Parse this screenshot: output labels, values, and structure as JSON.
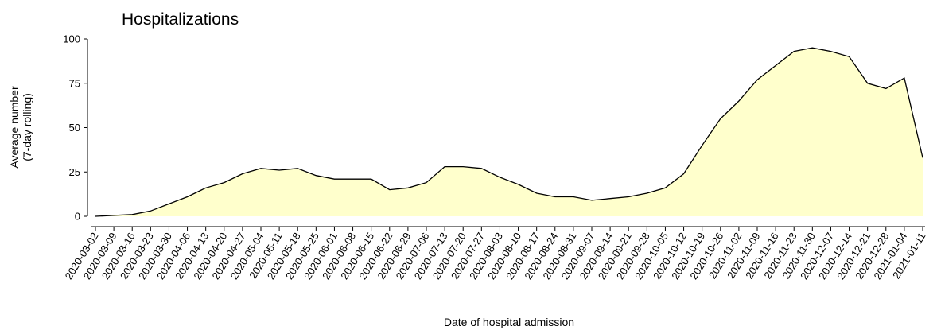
{
  "chart_data": {
    "type": "area",
    "title": "Hospitalizations",
    "xlabel": "Date of hospital admission",
    "ylabel": [
      "Average number",
      "(7-day rolling)"
    ],
    "categories": [
      "2020-03-02",
      "2020-03-09",
      "2020-03-16",
      "2020-03-23",
      "2020-03-30",
      "2020-04-06",
      "2020-04-13",
      "2020-04-20",
      "2020-04-27",
      "2020-05-04",
      "2020-05-11",
      "2020-05-18",
      "2020-05-25",
      "2020-06-01",
      "2020-06-08",
      "2020-06-15",
      "2020-06-22",
      "2020-06-29",
      "2020-07-06",
      "2020-07-13",
      "2020-07-20",
      "2020-07-27",
      "2020-08-03",
      "2020-08-10",
      "2020-08-17",
      "2020-08-24",
      "2020-08-31",
      "2020-09-07",
      "2020-09-14",
      "2020-09-21",
      "2020-09-28",
      "2020-10-05",
      "2020-10-12",
      "2020-10-19",
      "2020-10-26",
      "2020-11-02",
      "2020-11-09",
      "2020-11-16",
      "2020-11-23",
      "2020-11-30",
      "2020-12-07",
      "2020-12-14",
      "2020-12-21",
      "2020-12-28",
      "2021-01-04",
      "2021-01-11"
    ],
    "values": [
      0,
      0.5,
      1,
      3,
      7,
      11,
      16,
      19,
      24,
      27,
      26,
      27,
      23,
      21,
      21,
      21,
      15,
      16,
      19,
      28,
      28,
      27,
      22,
      18,
      13,
      11,
      11,
      9,
      10,
      11,
      13,
      16,
      24,
      40,
      55,
      65,
      77,
      85,
      93,
      95,
      93,
      90,
      75,
      72,
      78,
      33
    ],
    "color": "#ffffcc",
    "line_color": "#000000",
    "ylim": [
      0,
      100
    ],
    "yticks": [
      0,
      25,
      50,
      75,
      100
    ]
  }
}
